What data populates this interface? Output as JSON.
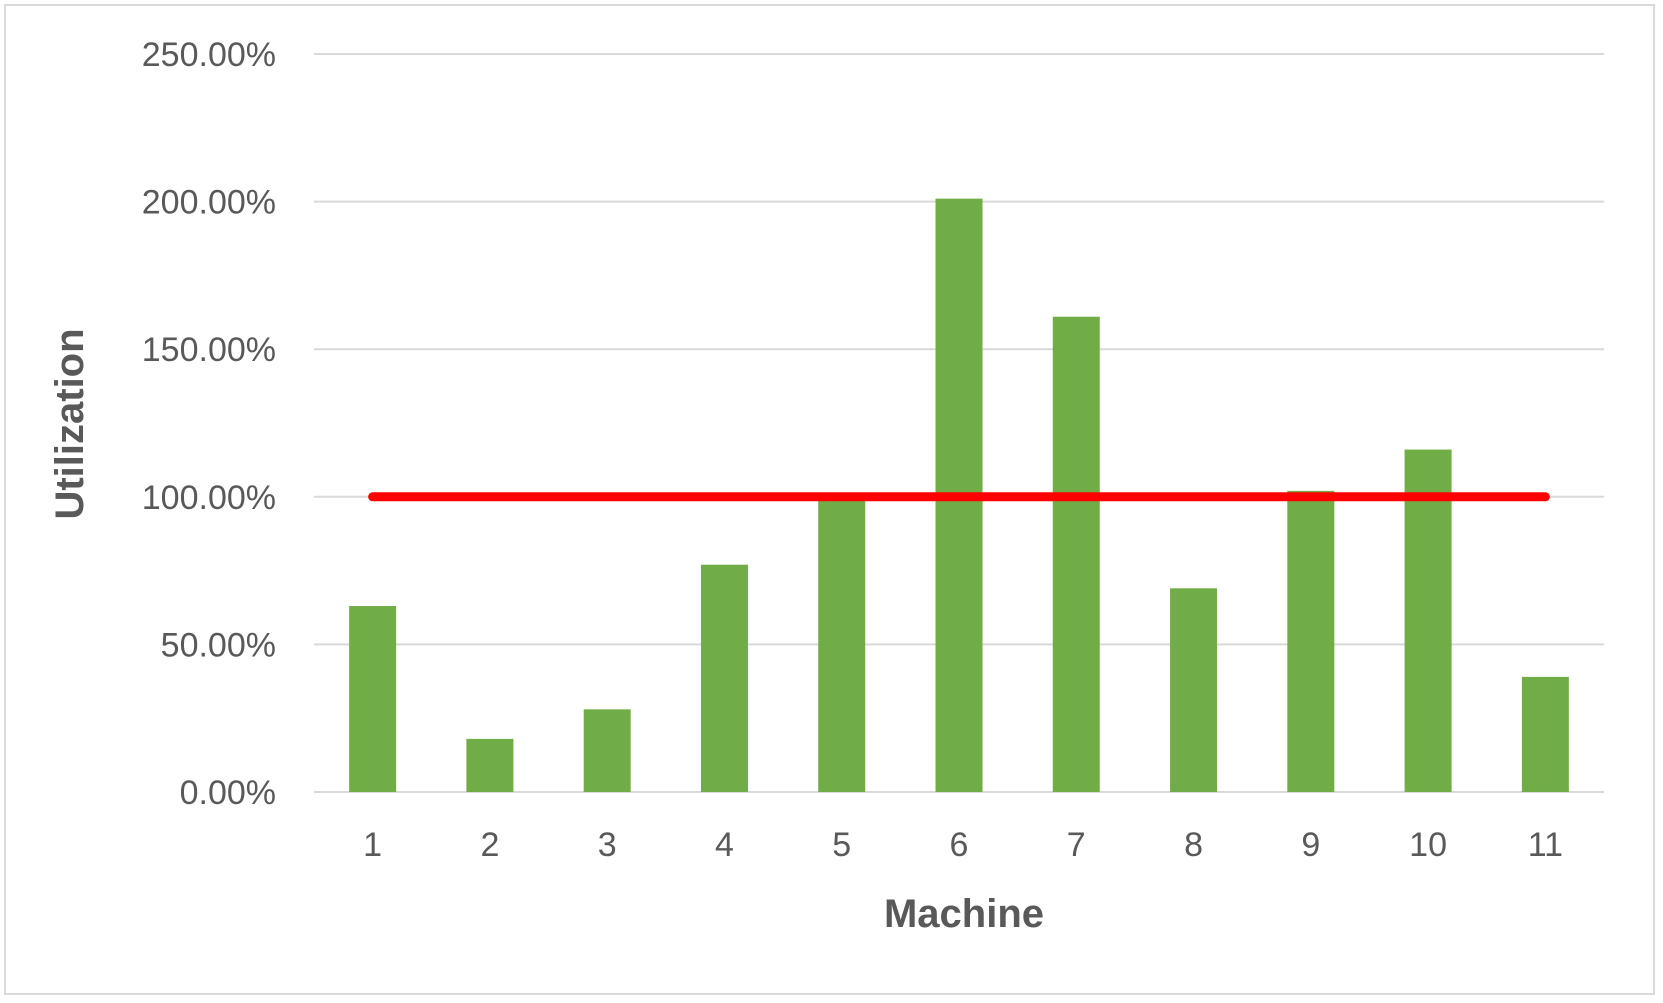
{
  "chart_data": {
    "type": "bar",
    "title": "",
    "xlabel": "Machine",
    "ylabel": "Utilization",
    "categories": [
      "1",
      "2",
      "3",
      "4",
      "5",
      "6",
      "7",
      "8",
      "9",
      "10",
      "11"
    ],
    "series": [
      {
        "values": [
          0.63,
          0.18,
          0.28,
          0.77,
          0.99,
          2.01,
          1.61,
          0.69,
          1.02,
          1.16,
          0.39
        ],
        "color": "#70ad47"
      }
    ],
    "reference_line": {
      "value": 1.0,
      "color": "#ff0000"
    },
    "ylim": [
      0,
      2.5
    ],
    "yticks": [
      0,
      0.5,
      1.0,
      1.5,
      2.0,
      2.5
    ],
    "ytick_labels": [
      "0.00%",
      "50.00%",
      "100.00%",
      "150.00%",
      "200.00%",
      "250.00%"
    ],
    "grid": true,
    "legend": "none",
    "colors": {
      "gridline": "#d9d9d9",
      "text": "#595959"
    }
  }
}
